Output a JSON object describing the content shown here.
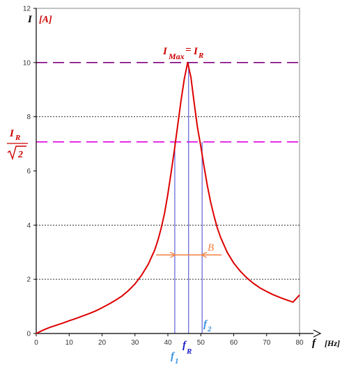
{
  "chart_data": {
    "type": "line",
    "title": "",
    "xlabel": "f",
    "xunit": "[Hz]",
    "ylabel": "I",
    "yunit": "[A]",
    "xlim": [
      0,
      80
    ],
    "ylim": [
      0,
      12
    ],
    "xticks": [
      0,
      10,
      20,
      30,
      40,
      50,
      60,
      70,
      80
    ],
    "yticks": [
      0,
      2,
      4,
      6,
      8,
      10,
      12
    ],
    "grid": {
      "y_dotted": [
        8,
        4,
        2
      ]
    },
    "series": [
      {
        "x": [
          0,
          2,
          4,
          6,
          8,
          10,
          12,
          14,
          16,
          18,
          20,
          22,
          24,
          26,
          28,
          30,
          32,
          34,
          36,
          37,
          38,
          39,
          40,
          41,
          42,
          43,
          44,
          45,
          46,
          47,
          48,
          49,
          50,
          51,
          52,
          53,
          54,
          55,
          56,
          58,
          60,
          62,
          64,
          66,
          68,
          70,
          72,
          74,
          76,
          78,
          80
        ],
        "y": [
          0,
          0.12,
          0.22,
          0.3,
          0.38,
          0.47,
          0.55,
          0.64,
          0.73,
          0.83,
          0.95,
          1.08,
          1.22,
          1.38,
          1.58,
          1.83,
          2.15,
          2.55,
          3.08,
          3.45,
          3.9,
          4.45,
          5.15,
          5.95,
          6.8,
          7.7,
          8.6,
          9.4,
          10,
          9.45,
          8.5,
          7.6,
          6.9,
          6.15,
          5.45,
          4.85,
          4.35,
          3.9,
          3.55,
          3.0,
          2.6,
          2.3,
          2.05,
          1.85,
          1.68,
          1.55,
          1.43,
          1.33,
          1.24,
          1.16,
          1.42
        ]
      }
    ],
    "reference_lines": {
      "imax": {
        "y": 10,
        "color": "#800080"
      },
      "ir_sqrt2": {
        "y": 7.07,
        "color": "#e000e0"
      }
    },
    "markers": {
      "f1": {
        "x": 42.1
      },
      "fR": {
        "x": 46.3
      },
      "f2": {
        "x": 50.4
      }
    },
    "bandwidth": {
      "label": "B",
      "color": "#f08040",
      "y": 2.9
    },
    "annotations": {
      "imax_main": "I",
      "imax_sub": "Max",
      "imax_eq": "=",
      "ir_main": "I",
      "ir_sub": "R",
      "ir_sqrt": "2",
      "f1_main": "f",
      "f1_sub": "1",
      "fR_main": "f",
      "fR_sub": "R",
      "f2_main": "f",
      "f2_sub": "2"
    },
    "colors": {
      "curve": "#dd0000",
      "marker_lines": "#4040d0",
      "label_red": "#cc0000",
      "label_lightblue": "#3090e0",
      "label_blue": "#1a1acc"
    }
  }
}
